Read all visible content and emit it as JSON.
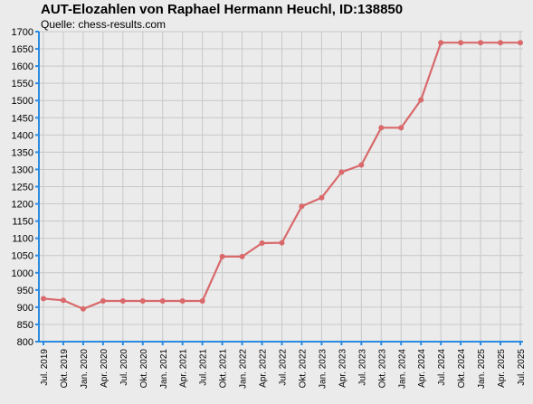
{
  "chart_data": {
    "type": "line",
    "title": "AUT-Elozahlen von Raphael Hermann Heuchl, ID:138850",
    "subtitle": "Quelle: chess-results.com",
    "xlabel": "",
    "ylabel": "",
    "ylim": [
      800,
      1700
    ],
    "y_ticks": [
      800,
      850,
      900,
      950,
      1000,
      1050,
      1100,
      1150,
      1200,
      1250,
      1300,
      1350,
      1400,
      1450,
      1500,
      1550,
      1600,
      1650,
      1700
    ],
    "grid": true,
    "categories": [
      "Jul. 2019",
      "Okt. 2019",
      "Jan. 2020",
      "Apr. 2020",
      "Jul. 2020",
      "Okt. 2020",
      "Jan. 2021",
      "Apr. 2021",
      "Jul. 2021",
      "Okt. 2021",
      "Jan. 2022",
      "Apr. 2022",
      "Jul. 2022",
      "Okt. 2022",
      "Jan. 2023",
      "Apr. 2023",
      "Jul. 2023",
      "Okt. 2023",
      "Jan. 2024",
      "Apr. 2024",
      "Jul. 2024",
      "Okt. 2024",
      "Jan. 2025",
      "Apr. 2025",
      "Jul. 2025"
    ],
    "series": [
      {
        "values": [
          925,
          920,
          895,
          918,
          918,
          918,
          918,
          918,
          918,
          1047,
          1047,
          1086,
          1087,
          1193,
          1218,
          1292,
          1313,
          1421,
          1421,
          1502,
          1668,
          1668,
          1668,
          1668,
          1668
        ]
      }
    ],
    "colors": {
      "line": "#d9696b",
      "marker": "#d9696b",
      "axis": "#2a8ae0",
      "grid": "#c8c8c8",
      "plot_background": "#ebebeb"
    }
  }
}
